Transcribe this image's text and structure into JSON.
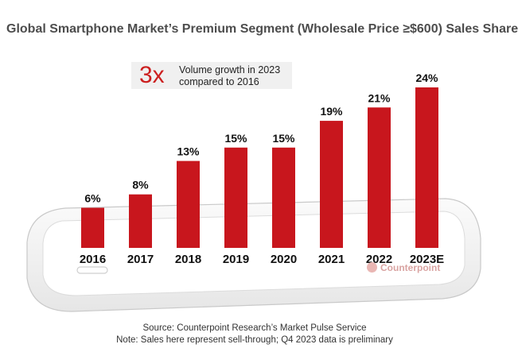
{
  "chart_data": {
    "type": "bar",
    "title": "Global Smartphone Market’s Premium Segment (Wholesale Price ≥$600) Sales Share",
    "categories": [
      "2016",
      "2017",
      "2018",
      "2019",
      "2020",
      "2021",
      "2022",
      "2023E"
    ],
    "values": [
      6,
      8,
      13,
      15,
      15,
      19,
      21,
      24
    ],
    "value_labels": [
      "6%",
      "8%",
      "13%",
      "15%",
      "15%",
      "19%",
      "21%",
      "24%"
    ],
    "unit": "%",
    "xlabel": "",
    "ylabel": "",
    "ylim": [
      0,
      24
    ],
    "grid": false,
    "bar_color": "#c8161d",
    "annotation": {
      "big": "3x",
      "line1": "Volume growth in 2023",
      "line2": "compared to 2016"
    }
  },
  "watermark": "Counterpoint",
  "source": {
    "line1": "Source: Counterpoint Research’s Market Pulse Service",
    "line2": "Note: Sales here represent sell-through; Q4 2023 data is preliminary"
  }
}
